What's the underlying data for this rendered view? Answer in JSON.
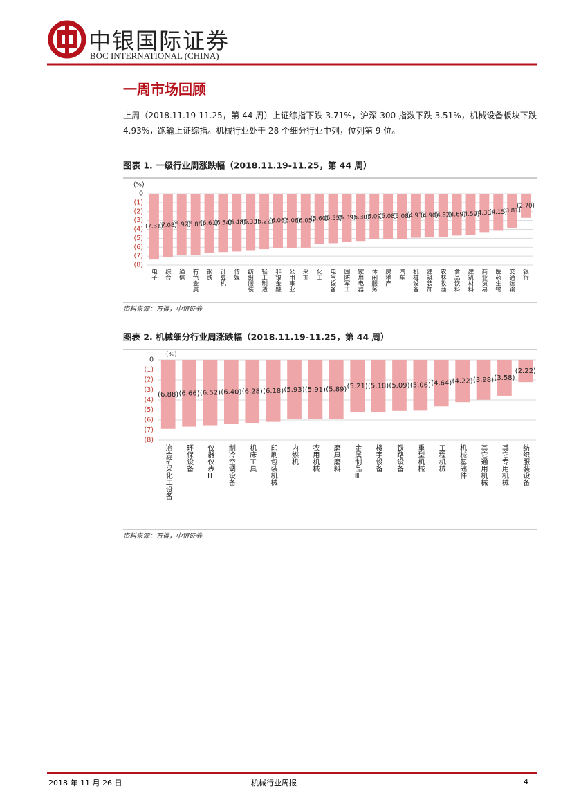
{
  "header": {
    "company_cn": "中银国际证券",
    "company_en": "BOC INTERNATIONAL (CHINA)"
  },
  "section_title": "一周市场回顾",
  "paragraph": "上周（2018.11.19-11.25，第 44 周）上证综指下跌 3.71%，沪深 300 指数下跌 3.51%，机械设备板块下跌 4.93%，跑输上证综指。机械行业处于 28 个细分行业中列，位列第 9 位。",
  "chart_data": [
    {
      "type": "bar",
      "title": "图表 1. 一级行业周涨跌幅（2018.11.19-11.25，第 44 周）",
      "y_unit": "(%)",
      "categories": [
        "电子",
        "综合",
        "通信",
        "有色金属",
        "钢铁",
        "计算机",
        "传媒",
        "纺织服装",
        "轻工制造",
        "非银金融",
        "公用事业",
        "采掘",
        "化工",
        "电气设备",
        "国防军工",
        "家用电器",
        "休闲服务",
        "房地产",
        "汽车",
        "机械设备",
        "建筑装饰",
        "农林牧渔",
        "食品饮料",
        "建筑材料",
        "商业贸易",
        "医药生物",
        "交通运输",
        "银行"
      ],
      "values": [
        -7.31,
        -7.08,
        -6.92,
        -6.88,
        -6.61,
        -6.54,
        -6.48,
        -6.33,
        -6.22,
        -6.06,
        -6.06,
        -6.05,
        -5.6,
        -5.55,
        -5.39,
        -5.3,
        -5.09,
        -5.08,
        -5.08,
        -4.93,
        -4.9,
        -4.82,
        -4.69,
        -4.59,
        -4.3,
        -4.15,
        -3.81,
        -2.7
      ],
      "value_labels": [
        "(7.31)",
        "(7.08)",
        "(6.92)",
        "(6.88)",
        "(6.61)",
        "(6.54)",
        "(6.48)",
        "(6.33)",
        "(6.22)",
        "(6.06)",
        "(6.06)",
        "(6.05)",
        "(5.60)",
        "(5.55)",
        "(5.39)",
        "(5.30)",
        "(5.09)",
        "(5.08)",
        "(5.08)",
        "(4.93)",
        "(4.90)",
        "(4.82)",
        "(4.69)",
        "(4.59)",
        "(4.30)",
        "(4.15)",
        "(3.81)",
        "(2.70)"
      ],
      "color": "#eea6a8",
      "ylim": [
        -8,
        0
      ],
      "yticks": [
        0,
        {
          "value": -1,
          "label": "(1)"
        },
        {
          "value": -2,
          "label": "(2)"
        },
        {
          "value": -3,
          "label": "(3)"
        },
        {
          "value": -4,
          "label": "(4)"
        },
        {
          "value": -5,
          "label": "(5)"
        },
        {
          "value": -6,
          "label": "(6)"
        },
        {
          "value": -7,
          "label": "(7)"
        },
        {
          "value": -8,
          "label": "(8)"
        }
      ],
      "grid": true,
      "source": "资料来源：万得，中银证券"
    },
    {
      "type": "bar",
      "title": "图表 2. 机械细分行业周涨跌幅（2018.11.19-11.25，第 44 周）",
      "y_unit": "(%)",
      "categories": [
        "冶金矿采化工设备",
        "环保设备",
        "仪器仪表Ⅲ",
        "制冷空调设备",
        "机床工具",
        "印刷包装机械",
        "内燃机",
        "农用机械",
        "磨具磨料",
        "金属制品Ⅲ",
        "楼宇设备",
        "铁路设备",
        "重型机械",
        "工程机械",
        "机械基础件",
        "其它通用机械",
        "其它专用机械",
        "纺织服装设备"
      ],
      "values": [
        -6.88,
        -6.66,
        -6.52,
        -6.4,
        -6.28,
        -6.18,
        -5.93,
        -5.91,
        -5.89,
        -5.21,
        -5.18,
        -5.09,
        -5.06,
        -4.64,
        -4.22,
        -3.98,
        -3.58,
        -2.22
      ],
      "value_labels": [
        "(6.88)",
        "(6.66)",
        "(6.52)",
        "(6.40)",
        "(6.28)",
        "(6.18)",
        "(5.93)",
        "(5.91)",
        "(5.89)",
        "(5.21)",
        "(5.18)",
        "(5.09)",
        "(5.06)",
        "(4.64)",
        "(4.22)",
        "(3.98)",
        "(3.58)",
        "(2.22)"
      ],
      "color": "#eea6a8",
      "ylim": [
        -8,
        0
      ],
      "yticks": [
        0,
        {
          "value": -1,
          "label": "(1)"
        },
        {
          "value": -2,
          "label": "(2)"
        },
        {
          "value": -3,
          "label": "(3)"
        },
        {
          "value": -4,
          "label": "(4)"
        },
        {
          "value": -5,
          "label": "(5)"
        },
        {
          "value": -6,
          "label": "(6)"
        },
        {
          "value": -7,
          "label": "(7)"
        },
        {
          "value": -8,
          "label": "(8)"
        }
      ],
      "grid": true,
      "source": "资料来源：万得，中银证券"
    }
  ],
  "footer": {
    "date": "2018 年 11 月 26 日",
    "title": "机械行业周报",
    "page": 4
  }
}
